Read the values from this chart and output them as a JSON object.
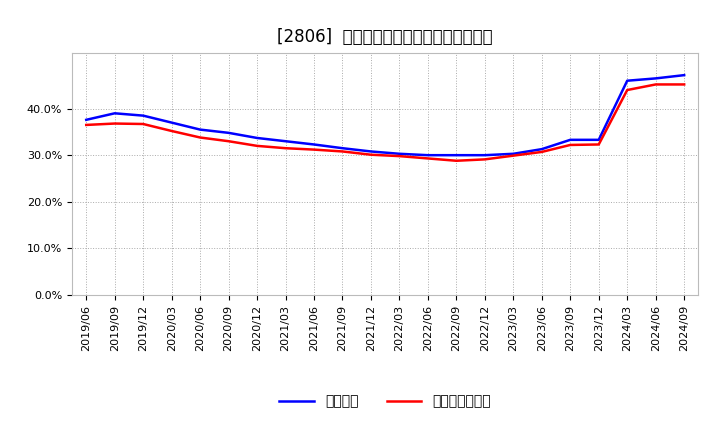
{
  "title": "[2806]  固定比率、固定長期適合率の推移",
  "legend_blue": "固定比率",
  "legend_red": "固定長期適合率",
  "background_color": "#ffffff",
  "plot_background_color": "#ffffff",
  "grid_color": "#aaaaaa",
  "ylim": [
    0.0,
    0.52
  ],
  "yticks": [
    0.0,
    0.1,
    0.2,
    0.3,
    0.4
  ],
  "x_labels": [
    "2019/06",
    "2019/09",
    "2019/12",
    "2020/03",
    "2020/06",
    "2020/09",
    "2020/12",
    "2021/03",
    "2021/06",
    "2021/09",
    "2021/12",
    "2022/03",
    "2022/06",
    "2022/09",
    "2022/12",
    "2023/03",
    "2023/06",
    "2023/09",
    "2023/12",
    "2024/03",
    "2024/06",
    "2024/09"
  ],
  "blue_values": [
    0.376,
    0.39,
    0.385,
    0.37,
    0.355,
    0.348,
    0.337,
    0.33,
    0.323,
    0.315,
    0.308,
    0.303,
    0.3,
    0.3,
    0.3,
    0.303,
    0.313,
    0.333,
    0.333,
    0.46,
    0.465,
    0.472
  ],
  "red_values": [
    0.365,
    0.368,
    0.367,
    0.352,
    0.338,
    0.33,
    0.32,
    0.315,
    0.312,
    0.308,
    0.301,
    0.298,
    0.293,
    0.288,
    0.291,
    0.299,
    0.307,
    0.322,
    0.323,
    0.44,
    0.452,
    0.452
  ],
  "blue_color": "#0000ff",
  "red_color": "#ff0000",
  "line_width": 1.8,
  "title_fontsize": 12,
  "tick_fontsize": 8,
  "legend_fontsize": 10
}
